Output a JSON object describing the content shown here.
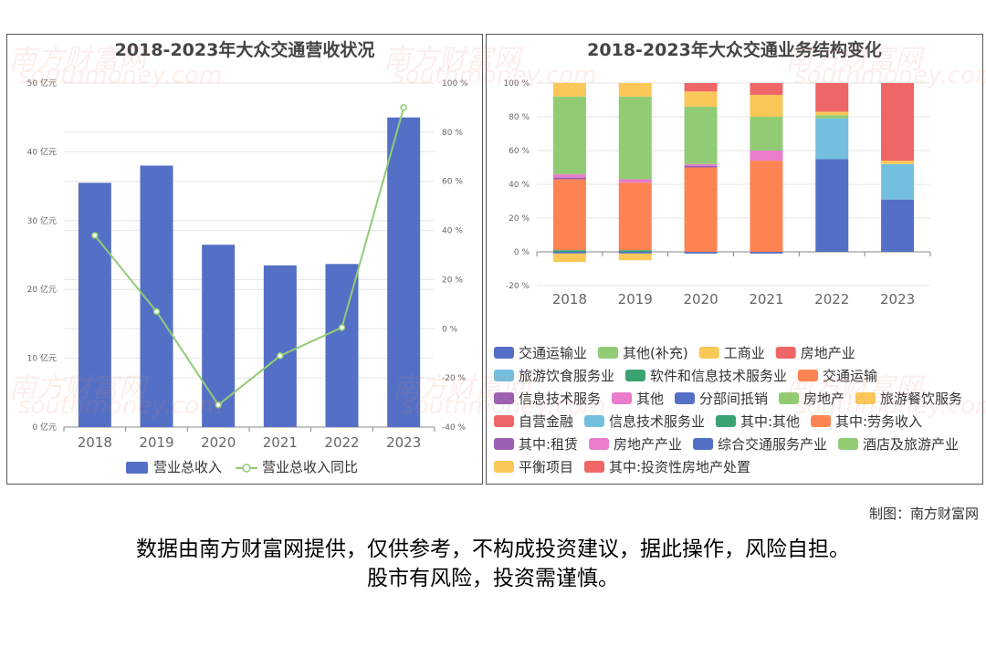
{
  "watermark_brand": "南方财富网",
  "watermark_domain": "southmoney.com",
  "credit": "制图：南方财富网",
  "disclaimer_line1": "数据由南方财富网提供，仅供参考，不构成投资建议，据此操作，风险自担。",
  "disclaimer_line2": "股市有风险，投资需谨慎。",
  "chart_data": [
    {
      "type": "bar",
      "title": "2018-2023年大众交通营收状况",
      "categories": [
        "2018",
        "2019",
        "2020",
        "2021",
        "2022",
        "2023"
      ],
      "series": [
        {
          "name": "营业总收入",
          "type": "bar",
          "axis": "left",
          "color": "#5470c6",
          "values": [
            35.5,
            38,
            26.5,
            23.5,
            23.7,
            45
          ]
        },
        {
          "name": "营业总收入同比",
          "type": "line",
          "axis": "right",
          "color": "#91cc75",
          "values": [
            38,
            7,
            -31,
            -11,
            0.5,
            90
          ]
        }
      ],
      "left_axis": {
        "ylim": [
          0,
          50
        ],
        "ticks": [
          0,
          10,
          20,
          30,
          40,
          50
        ],
        "tick_labels": [
          "0 亿元",
          "10 亿元",
          "20 亿元",
          "30 亿元",
          "40 亿元",
          "50 亿元"
        ]
      },
      "right_axis": {
        "ylim": [
          -40,
          100
        ],
        "ticks": [
          -40,
          -20,
          0,
          20,
          40,
          60,
          80,
          100
        ],
        "tick_labels": [
          "-40 %",
          "-20 %",
          "0 %",
          "20 %",
          "40 %",
          "60 %",
          "80 %",
          "100 %"
        ]
      },
      "grid": true,
      "legend_position": "bottom"
    },
    {
      "type": "bar",
      "stacked": true,
      "title": "2018-2023年大众交通业务结构变化",
      "categories": [
        "2018",
        "2019",
        "2020",
        "2021",
        "2022",
        "2023"
      ],
      "ylim": [
        -20,
        100
      ],
      "ticks": [
        -20,
        0,
        20,
        40,
        60,
        80,
        100
      ],
      "tick_labels": [
        "-20 %",
        "0 %",
        "20 %",
        "40 %",
        "60 %",
        "80 %",
        "100 %"
      ],
      "series": [
        {
          "name": "交通运输业",
          "color": "#5470c6",
          "values": [
            0,
            0,
            0,
            0,
            55,
            31
          ]
        },
        {
          "name": "其他(补充)",
          "color": "#91cc75",
          "values": [
            0,
            0,
            0,
            0,
            0,
            0
          ]
        },
        {
          "name": "工商业",
          "color": "#fac858",
          "values": [
            0,
            0,
            0,
            0,
            0,
            0
          ]
        },
        {
          "name": "房地产业",
          "color": "#ee6666",
          "values": [
            0,
            0,
            0,
            0,
            0,
            0
          ]
        },
        {
          "name": "旅游饮食服务业",
          "color": "#73c0de",
          "values": [
            0,
            0,
            0,
            0,
            24,
            21
          ]
        },
        {
          "name": "软件和信息技术服务业",
          "color": "#3ba272",
          "values": [
            1,
            1,
            0,
            0,
            0,
            0
          ]
        },
        {
          "name": "交通运输",
          "color": "#fc8452",
          "values": [
            42,
            40,
            50,
            54,
            0,
            0
          ]
        },
        {
          "name": "信息技术服务",
          "color": "#9a60b4",
          "values": [
            1,
            0,
            1,
            0,
            0,
            0
          ]
        },
        {
          "name": "其他",
          "color": "#ea7ccc",
          "values": [
            2,
            2,
            1,
            6,
            0,
            0
          ]
        },
        {
          "name": "分部间抵销",
          "color": "#5470c6",
          "values": [
            -1,
            -1,
            -1,
            -1,
            0,
            0
          ]
        },
        {
          "name": "房地产",
          "color": "#91cc75",
          "values": [
            46,
            49,
            34,
            20,
            0,
            0
          ]
        },
        {
          "name": "旅游餐饮服务",
          "color": "#fac858",
          "values": [
            8,
            8,
            9,
            13,
            0,
            0
          ]
        },
        {
          "name": "自营金融",
          "color": "#ee6666",
          "values": [
            0,
            0,
            5,
            7,
            0,
            0
          ]
        },
        {
          "name": "信息技术服务业",
          "color": "#73c0de",
          "values": [
            0,
            0,
            0,
            0,
            0,
            0
          ]
        },
        {
          "name": "其中:其他",
          "color": "#3ba272",
          "values": [
            0,
            0,
            0,
            0,
            0,
            0
          ]
        },
        {
          "name": "其中:劳务收入",
          "color": "#fc8452",
          "values": [
            0,
            0,
            0,
            0,
            0,
            0
          ]
        },
        {
          "name": "其中:租赁",
          "color": "#9a60b4",
          "values": [
            0,
            0,
            0,
            0,
            0,
            0
          ]
        },
        {
          "name": "房地产产业",
          "color": "#ea7ccc",
          "values": [
            0,
            0,
            0,
            0,
            0,
            0
          ]
        },
        {
          "name": "综合交通服务产业",
          "color": "#5470c6",
          "values": [
            0,
            0,
            0,
            0,
            0,
            0
          ]
        },
        {
          "name": "酒店及旅游产业",
          "color": "#91cc75",
          "values": [
            0,
            0,
            0,
            0,
            2,
            0
          ]
        },
        {
          "name": "平衡项目",
          "color": "#fac858",
          "values": [
            -5,
            -4,
            0,
            0,
            2,
            2
          ]
        },
        {
          "name": "其中:投资性房地产处置",
          "color": "#ee6666",
          "values": [
            0,
            0,
            0,
            0,
            17,
            46
          ]
        }
      ],
      "grid": true,
      "legend_position": "bottom"
    }
  ]
}
